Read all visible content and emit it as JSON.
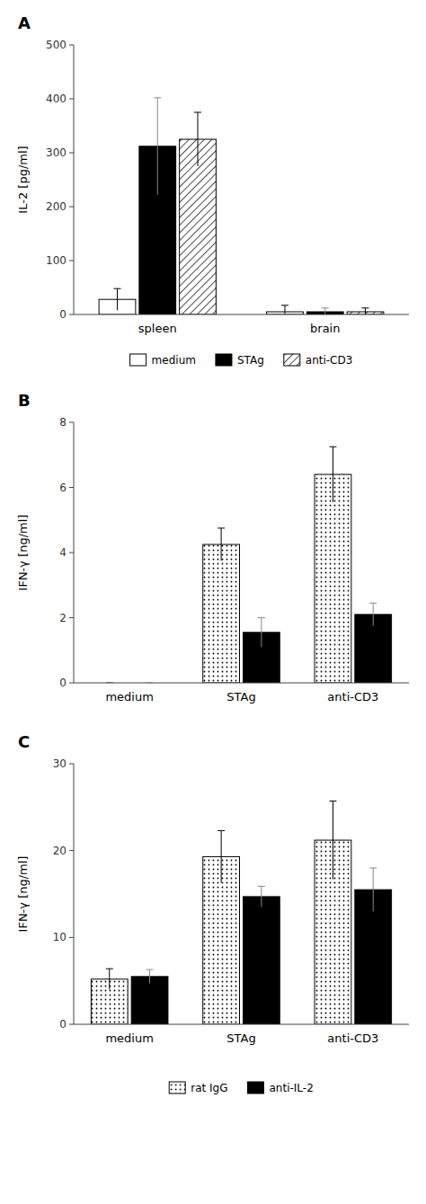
{
  "chart_data": [
    {
      "type": "bar",
      "title": "A",
      "ylabel": "IL-2 [pg/ml]",
      "categories": [
        "spleen",
        "brain"
      ],
      "series": [
        {
          "name": "medium",
          "color": "white",
          "values": [
            28,
            5
          ],
          "errors": [
            20,
            12
          ]
        },
        {
          "name": "STAg",
          "color": "black",
          "values": [
            312,
            5
          ],
          "errors": [
            90,
            7
          ]
        },
        {
          "name": "anti-CD3",
          "color": "white",
          "values": [
            325,
            5
          ],
          "errors": [
            50,
            7
          ]
        }
      ],
      "ylim": [
        0,
        500
      ],
      "yticks": [
        0,
        100,
        200,
        300,
        400,
        500
      ],
      "legend": "bottom"
    },
    {
      "type": "bar",
      "title": "B",
      "ylabel": "IFN-γ [ng/ml]",
      "categories": [
        "medium",
        "STAg",
        "anti-CD3"
      ],
      "series": [
        {
          "name": "rat IgG",
          "color": "white",
          "values": [
            0,
            4.25,
            6.4
          ],
          "errors": [
            0,
            0.5,
            0.85
          ]
        },
        {
          "name": "anti-IL-2",
          "color": "black",
          "values": [
            0,
            1.55,
            2.1
          ],
          "errors": [
            0,
            0.45,
            0.35
          ]
        }
      ],
      "ylim": [
        0,
        8
      ],
      "yticks": [
        0,
        2,
        4,
        6,
        8
      ],
      "legend": false
    },
    {
      "type": "bar",
      "title": "C",
      "ylabel": "IFN-γ [ng/ml]",
      "categories": [
        "medium",
        "STAg",
        "anti-CD3"
      ],
      "series": [
        {
          "name": "rat IgG",
          "color": "white",
          "values": [
            5.2,
            19.3,
            21.2
          ],
          "errors": [
            1.2,
            3.0,
            4.5
          ]
        },
        {
          "name": "anti-IL-2",
          "color": "black",
          "values": [
            5.5,
            14.7,
            15.5
          ],
          "errors": [
            0.8,
            1.2,
            2.5
          ]
        }
      ],
      "ylim": [
        0,
        30
      ],
      "yticks": [
        0,
        10,
        20,
        30
      ],
      "legend": "bottom"
    }
  ]
}
